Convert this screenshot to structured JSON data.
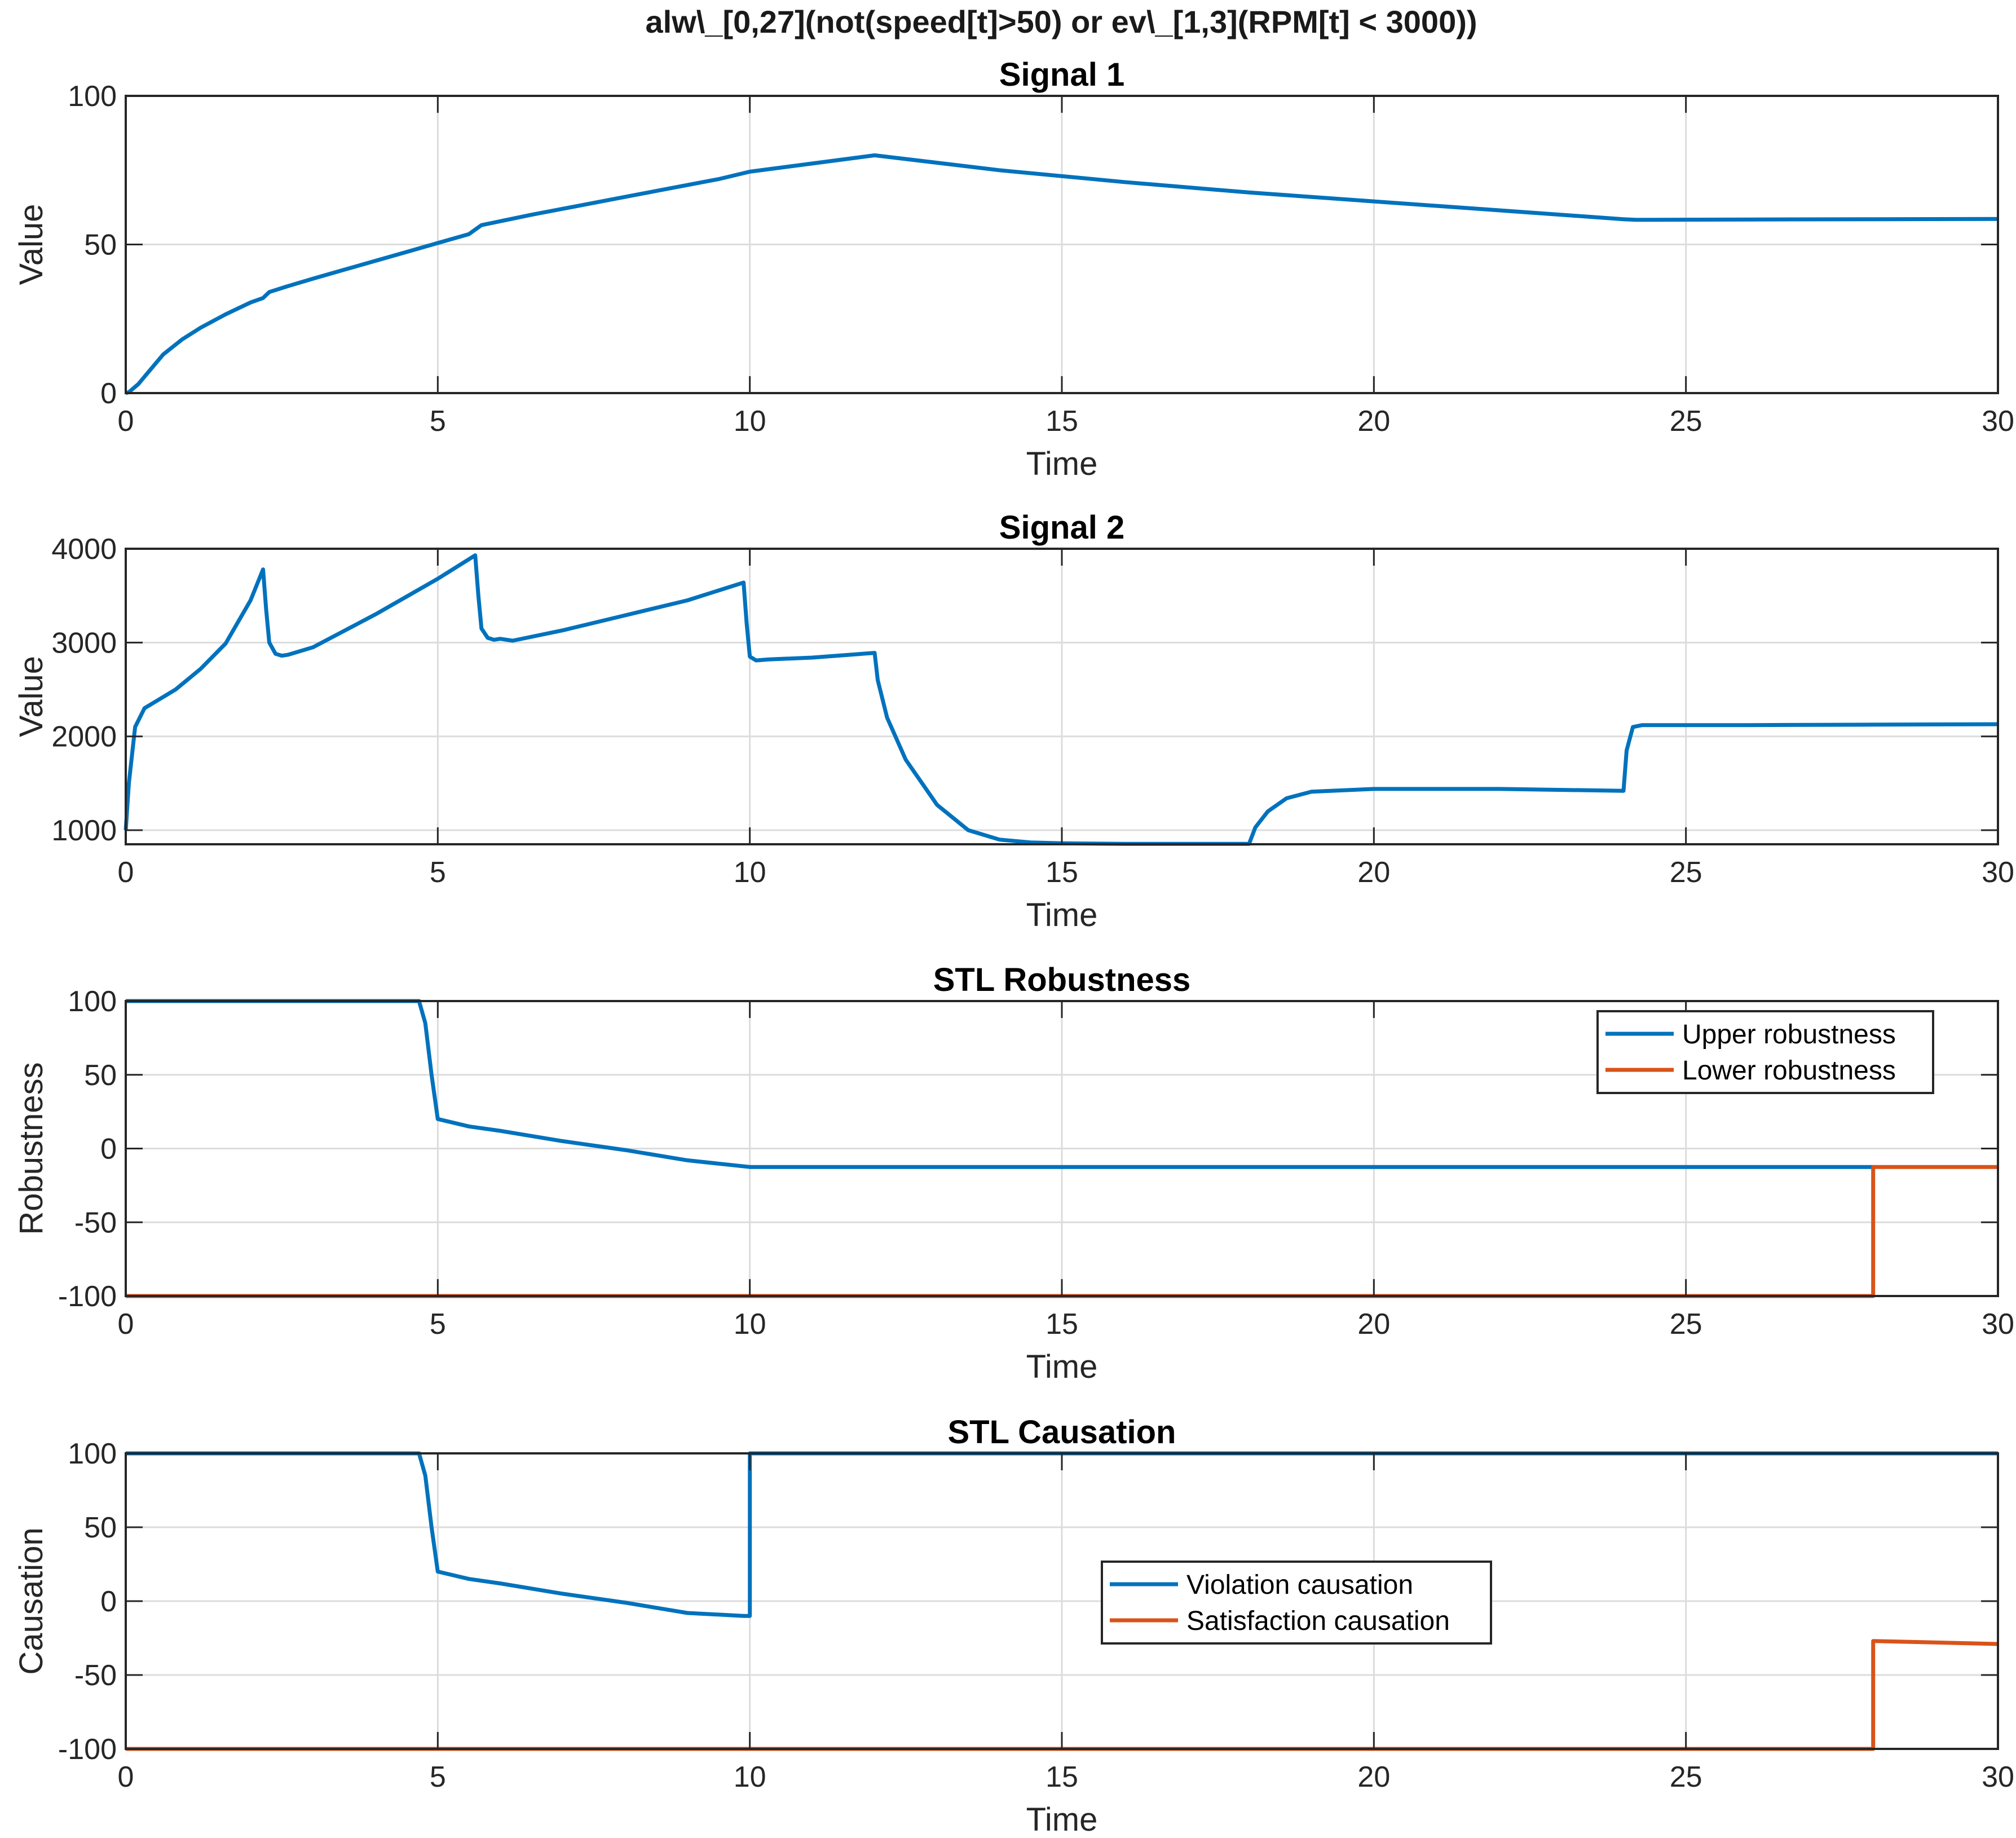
{
  "figure_title": "alw\\_[0,27](not(speed[t]>50) or ev\\_[1,3](RPM[t] < 3000))",
  "colors": {
    "blue": "#0072BD",
    "orange": "#D95319"
  },
  "chart_data": [
    {
      "type": "line",
      "title": "Signal 1",
      "xlabel": "Time",
      "ylabel": "Value",
      "xlim": [
        0,
        30
      ],
      "ylim": [
        0,
        100
      ],
      "xticks": [
        0,
        5,
        10,
        15,
        20,
        25,
        30
      ],
      "yticks": [
        0,
        50,
        100
      ],
      "grid": true,
      "legend": null,
      "series": [
        {
          "color": "#0072BD",
          "x": [
            0,
            0.05,
            0.2,
            0.4,
            0.6,
            0.9,
            1.2,
            1.6,
            2.0,
            2.2,
            2.3,
            2.6,
            3.0,
            3.5,
            4.0,
            4.5,
            5.0,
            5.5,
            5.6,
            5.7,
            6.5,
            7.5,
            8.5,
            9.5,
            10.0,
            12.0,
            14.0,
            16.0,
            18.0,
            20.0,
            22.0,
            24.0,
            24.2,
            26.0,
            28.0,
            30.0
          ],
          "y": [
            0,
            0.3,
            3,
            8,
            13,
            18,
            22,
            26.5,
            30.5,
            32,
            34,
            36,
            38.5,
            41.5,
            44.5,
            47.5,
            50.5,
            53.5,
            55,
            56.5,
            60,
            64,
            68,
            72,
            74.5,
            80,
            75,
            71,
            67.5,
            64.5,
            61.5,
            58.5,
            58.3,
            58.4,
            58.5,
            58.6
          ]
        }
      ]
    },
    {
      "type": "line",
      "title": "Signal 2",
      "xlabel": "Time",
      "ylabel": "Value",
      "xlim": [
        0,
        30
      ],
      "ylim": [
        850,
        4000
      ],
      "xticks": [
        0,
        5,
        10,
        15,
        20,
        25,
        30
      ],
      "yticks": [
        1000,
        2000,
        3000,
        4000
      ],
      "grid": true,
      "legend": null,
      "series": [
        {
          "color": "#0072BD",
          "x": [
            0,
            0.05,
            0.15,
            0.3,
            0.5,
            0.8,
            1.2,
            1.6,
            2.0,
            2.2,
            2.25,
            2.3,
            2.4,
            2.5,
            2.6,
            3.0,
            4.0,
            5.0,
            5.6,
            5.65,
            5.7,
            5.8,
            5.9,
            6.0,
            6.2,
            7.0,
            8.0,
            9.0,
            9.9,
            9.95,
            10.0,
            10.1,
            10.3,
            11.0,
            12.0,
            12.05,
            12.2,
            12.5,
            13.0,
            13.5,
            14.0,
            14.5,
            15.0,
            16.0,
            17.0,
            18.0,
            18.1,
            18.3,
            18.6,
            19.0,
            20.0,
            22.0,
            24.0,
            24.05,
            24.15,
            24.3,
            26.0,
            28.0,
            30.0
          ],
          "y": [
            1000,
            1500,
            2100,
            2300,
            2380,
            2500,
            2720,
            2990,
            3450,
            3780,
            3350,
            3000,
            2880,
            2860,
            2870,
            2950,
            3300,
            3680,
            3930,
            3500,
            3150,
            3050,
            3030,
            3040,
            3020,
            3130,
            3290,
            3450,
            3640,
            3200,
            2850,
            2810,
            2820,
            2840,
            2890,
            2600,
            2200,
            1750,
            1270,
            1000,
            900,
            870,
            860,
            855,
            855,
            855,
            1030,
            1200,
            1340,
            1410,
            1440,
            1440,
            1420,
            1850,
            2100,
            2120,
            2120,
            2125,
            2130
          ]
        }
      ]
    },
    {
      "type": "line",
      "title": "STL Robustness",
      "xlabel": "Time",
      "ylabel": "Robustness",
      "xlim": [
        0,
        30
      ],
      "ylim": [
        -100,
        100
      ],
      "xticks": [
        0,
        5,
        10,
        15,
        20,
        25,
        30
      ],
      "yticks": [
        -100,
        -50,
        0,
        50,
        100
      ],
      "grid": true,
      "legend": "top-right",
      "series": [
        {
          "name": "Upper robustness",
          "color": "#0072BD",
          "x": [
            0,
            4.7,
            4.8,
            4.9,
            5.0,
            5.5,
            6.0,
            7.0,
            8.0,
            9.0,
            10.0,
            15.0,
            20.0,
            25.0,
            28.0
          ],
          "y": [
            100,
            100,
            85,
            50,
            20,
            15,
            12,
            5,
            -1,
            -8,
            -12.5,
            -12.5,
            -12.5,
            -12.5,
            -12.5
          ]
        },
        {
          "name": "Lower robustness",
          "color": "#D95319",
          "x": [
            0,
            28.0,
            28.0,
            30.0
          ],
          "y": [
            -100,
            -100,
            -12.5,
            -12.5
          ]
        }
      ]
    },
    {
      "type": "line",
      "title": "STL Causation",
      "xlabel": "Time",
      "ylabel": "Causation",
      "xlim": [
        0,
        30
      ],
      "ylim": [
        -100,
        100
      ],
      "xticks": [
        0,
        5,
        10,
        15,
        20,
        25,
        30
      ],
      "yticks": [
        -100,
        -50,
        0,
        50,
        100
      ],
      "grid": true,
      "legend": "center",
      "series": [
        {
          "name": "Violation causation",
          "color": "#0072BD",
          "x": [
            0,
            4.7,
            4.8,
            4.9,
            5.0,
            5.5,
            6.0,
            7.0,
            8.0,
            9.0,
            9.9,
            10.0,
            10.0,
            20.0,
            30.0
          ],
          "y": [
            100,
            100,
            85,
            50,
            20,
            15,
            12,
            5,
            -1,
            -8,
            -10,
            -10,
            100,
            100,
            100
          ]
        },
        {
          "name": "Satisfaction causation",
          "color": "#D95319",
          "x": [
            0,
            28.0,
            28.0,
            30.0
          ],
          "y": [
            -100,
            -100,
            -27,
            -29
          ]
        }
      ]
    }
  ]
}
